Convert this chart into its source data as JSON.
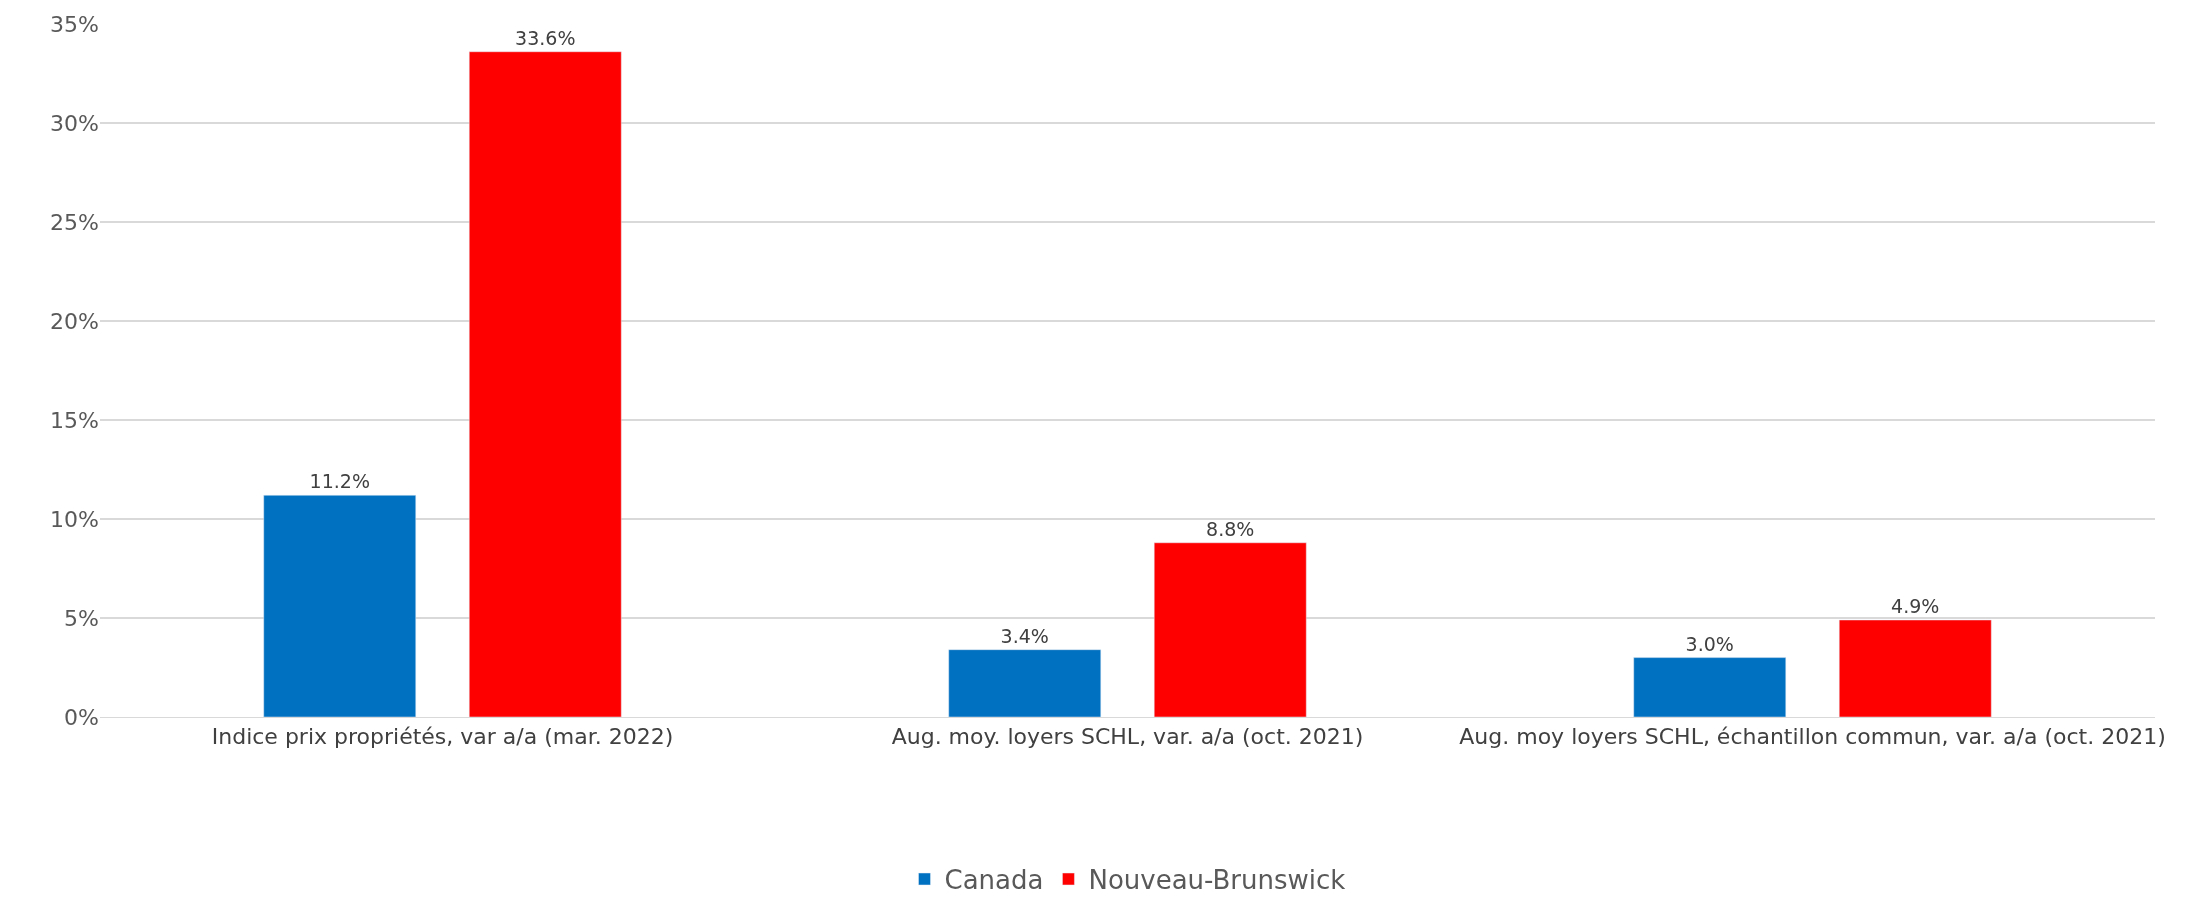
{
  "chart_data": {
    "type": "bar",
    "categories": [
      "Indice prix propriétés, var a/a (mar. 2022)",
      "Aug. moy. loyers SCHL, var. a/a (oct. 2021)",
      "Aug. moy loyers SCHL, échantillon commun, var. a/a (oct. 2021)"
    ],
    "series": [
      {
        "name": "Canada",
        "color": "#0070c0",
        "values": [
          11.2,
          3.4,
          3.0
        ],
        "value_labels": [
          "11.2%",
          "3.4%",
          "3.0%"
        ]
      },
      {
        "name": "Nouveau-Brunswick",
        "color": "#ff0000",
        "values": [
          33.6,
          8.8,
          4.9
        ],
        "value_labels": [
          "33.6%",
          "8.8%",
          "4.9%"
        ]
      }
    ],
    "ylim": [
      0,
      35
    ],
    "yticks": [
      {
        "value": 0,
        "label": "0%"
      },
      {
        "value": 5,
        "label": "5%"
      },
      {
        "value": 10,
        "label": "10%"
      },
      {
        "value": 15,
        "label": "15%"
      },
      {
        "value": 20,
        "label": "20%"
      },
      {
        "value": 25,
        "label": "25%"
      },
      {
        "value": 30,
        "label": "30%"
      },
      {
        "value": 35,
        "label": "35%"
      }
    ],
    "grid": "y",
    "legend": "bottom"
  }
}
